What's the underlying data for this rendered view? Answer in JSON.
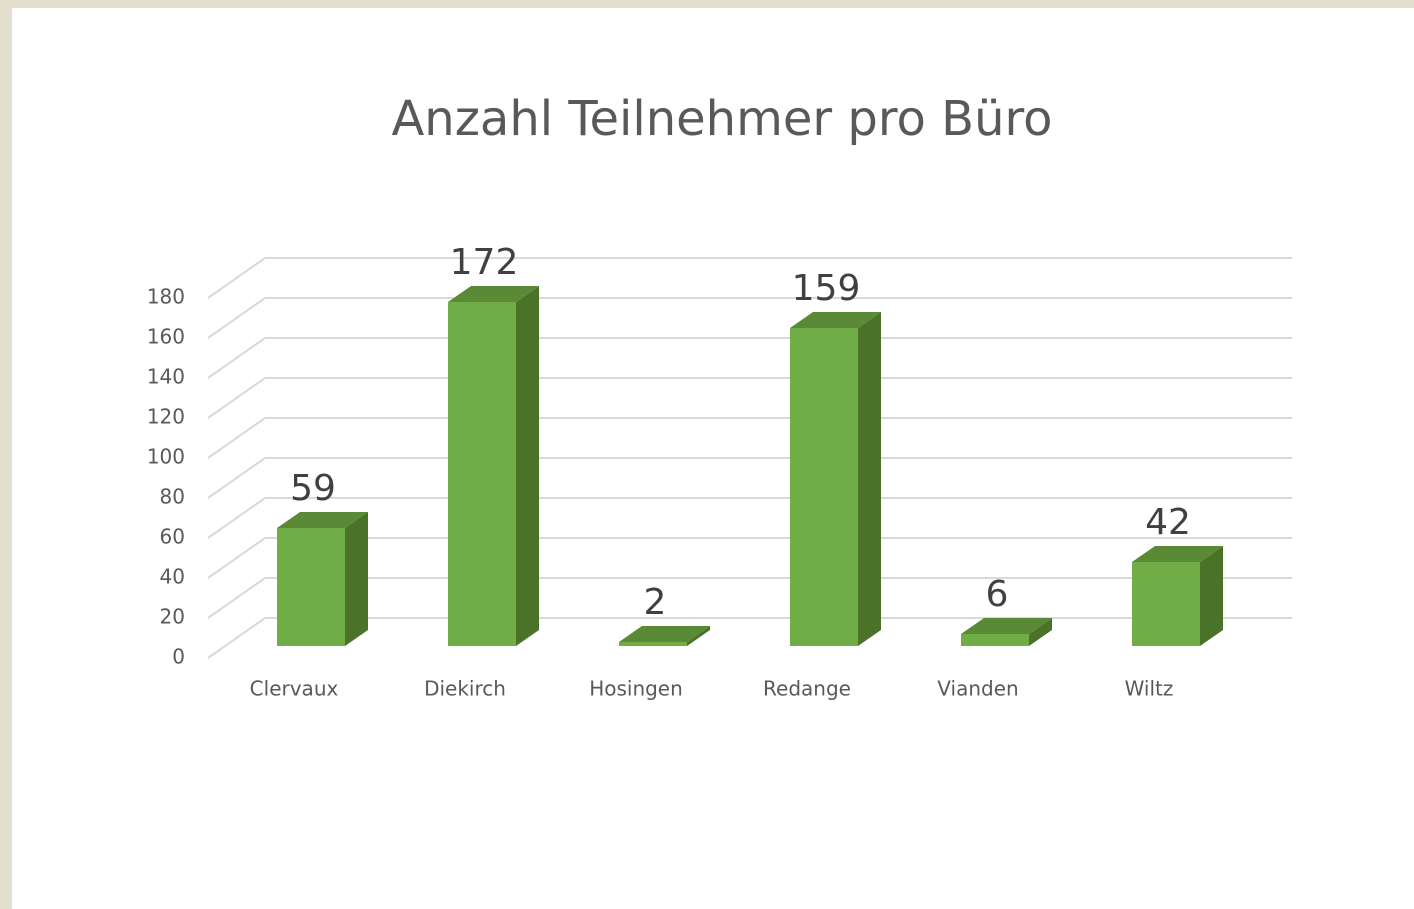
{
  "chart_data": {
    "type": "bar3d",
    "title": "Anzahl Teilnehmer pro Büro",
    "categories": [
      "Clervaux",
      "Diekirch",
      "Hosingen",
      "Redange",
      "Vianden",
      "Wiltz"
    ],
    "values": [
      59,
      172,
      2,
      159,
      6,
      42
    ],
    "color": "#70ad47",
    "ylim": [
      0,
      180
    ],
    "yticks": [
      0,
      20,
      40,
      60,
      80,
      100,
      120,
      140,
      160,
      180
    ],
    "grid": true
  }
}
